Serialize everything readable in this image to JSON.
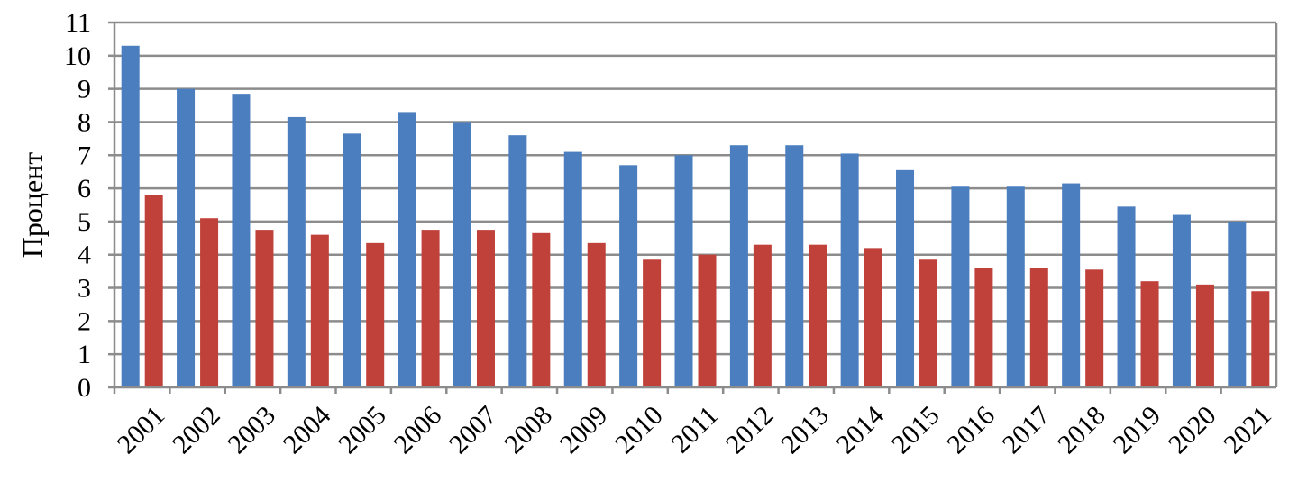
{
  "chart_data": {
    "type": "bar",
    "title": "",
    "xlabel": "",
    "ylabel": "Процент",
    "ylim": [
      0,
      11
    ],
    "yticks": [
      0,
      1,
      2,
      3,
      4,
      5,
      6,
      7,
      8,
      9,
      10,
      11
    ],
    "grid": true,
    "legend": "none",
    "categories": [
      "2001",
      "2002",
      "2003",
      "2004",
      "2005",
      "2006",
      "2007",
      "2008",
      "2009",
      "2010",
      "2011",
      "2012",
      "2013",
      "2014",
      "2015",
      "2016",
      "2017",
      "2018",
      "2019",
      "2020",
      "2021"
    ],
    "series": [
      {
        "color": "#4a7ebf",
        "values": [
          10.3,
          9.0,
          8.85,
          8.15,
          7.65,
          8.3,
          8.0,
          7.6,
          7.1,
          6.7,
          7.0,
          7.3,
          7.3,
          7.05,
          6.55,
          6.05,
          6.05,
          6.15,
          5.45,
          5.2,
          5.0
        ]
      },
      {
        "color": "#c0403a",
        "values": [
          5.8,
          5.1,
          4.75,
          4.6,
          4.35,
          4.75,
          4.75,
          4.65,
          4.35,
          3.85,
          4.0,
          4.3,
          4.3,
          4.2,
          3.85,
          3.6,
          3.6,
          3.55,
          3.2,
          3.1,
          2.9
        ]
      }
    ]
  }
}
